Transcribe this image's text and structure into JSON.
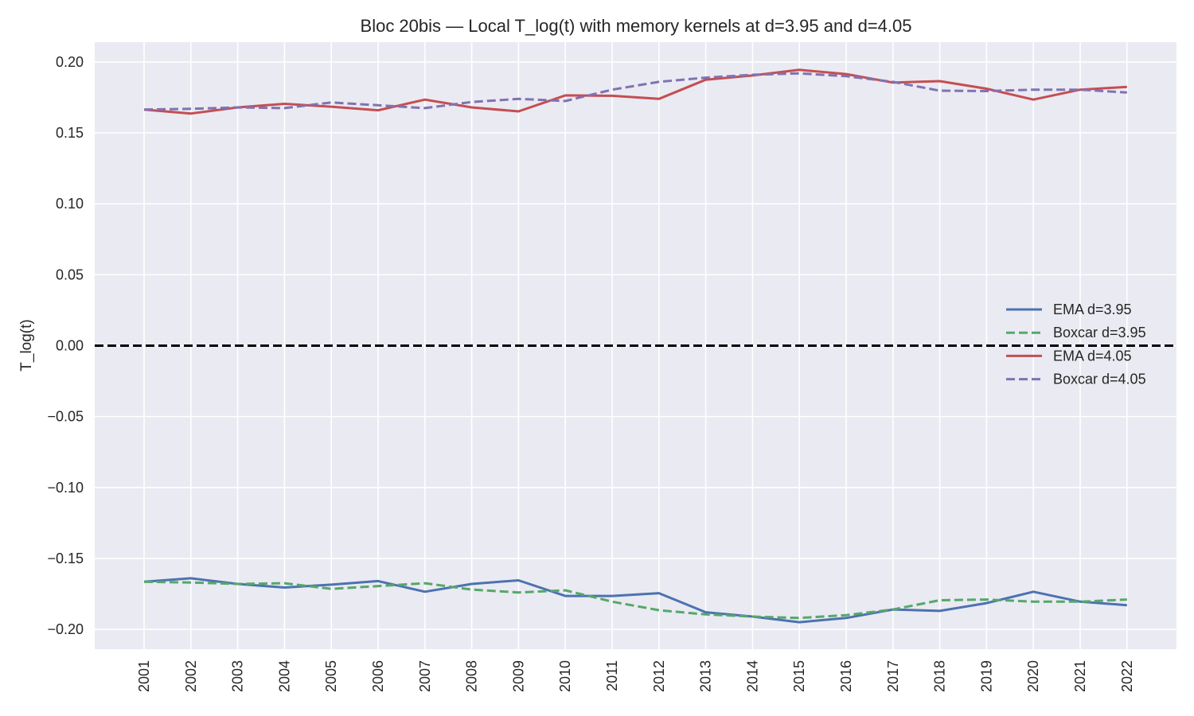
{
  "chart_data": {
    "type": "line",
    "title": "Bloc 20bis — Local T_log(t) with memory kernels at d=3.95 and d=4.05",
    "xlabel": "",
    "ylabel": "T_log(t)",
    "categories": [
      "2001",
      "2002",
      "2003",
      "2004",
      "2005",
      "2006",
      "2007",
      "2008",
      "2009",
      "2010",
      "2011",
      "2012",
      "2013",
      "2014",
      "2015",
      "2016",
      "2017",
      "2018",
      "2019",
      "2020",
      "2021",
      "2022"
    ],
    "ylim": [
      -0.214,
      0.214
    ],
    "yticks": [
      -0.2,
      -0.15,
      -0.1,
      -0.05,
      0.0,
      0.05,
      0.1,
      0.15,
      0.2
    ],
    "ytick_labels": [
      "−0.20",
      "−0.15",
      "−0.10",
      "−0.05",
      "0.00",
      "0.05",
      "0.10",
      "0.15",
      "0.20"
    ],
    "grid": true,
    "legend_position": "center-right",
    "reference_line": {
      "y": 0.0,
      "style": "dashed",
      "color": "#000000"
    },
    "series": [
      {
        "name": "EMA d=3.95",
        "color": "#4c72b0",
        "dash": "solid",
        "values": [
          -0.1665,
          -0.164,
          -0.168,
          -0.1705,
          -0.1685,
          -0.166,
          -0.1735,
          -0.168,
          -0.1655,
          -0.1765,
          -0.1765,
          -0.1745,
          -0.188,
          -0.191,
          -0.195,
          -0.192,
          -0.186,
          -0.187,
          -0.1815,
          -0.1735,
          -0.1805,
          -0.183
        ]
      },
      {
        "name": "Boxcar d=3.95",
        "color": "#55a868",
        "dash": "dashed",
        "values": [
          -0.1665,
          -0.167,
          -0.168,
          -0.1675,
          -0.1715,
          -0.1695,
          -0.1675,
          -0.172,
          -0.174,
          -0.1725,
          -0.1805,
          -0.1865,
          -0.1895,
          -0.191,
          -0.192,
          -0.19,
          -0.186,
          -0.1795,
          -0.179,
          -0.1805,
          -0.1805,
          -0.179
        ]
      },
      {
        "name": "EMA d=4.05",
        "color": "#c44e52",
        "dash": "solid",
        "values": [
          0.1665,
          0.1637,
          0.168,
          0.1705,
          0.1685,
          0.166,
          0.1735,
          0.168,
          0.1652,
          0.1765,
          0.1762,
          0.174,
          0.1875,
          0.1905,
          0.1945,
          0.1915,
          0.1855,
          0.1865,
          0.1812,
          0.1735,
          0.1805,
          0.1825
        ]
      },
      {
        "name": "Boxcar d=4.05",
        "color": "#8172b2",
        "dash": "dashed",
        "values": [
          0.1665,
          0.167,
          0.168,
          0.1675,
          0.1715,
          0.1695,
          0.1675,
          0.1718,
          0.174,
          0.1725,
          0.1805,
          0.186,
          0.189,
          0.191,
          0.192,
          0.19,
          0.186,
          0.1798,
          0.1795,
          0.1805,
          0.1805,
          0.1785
        ]
      }
    ]
  }
}
